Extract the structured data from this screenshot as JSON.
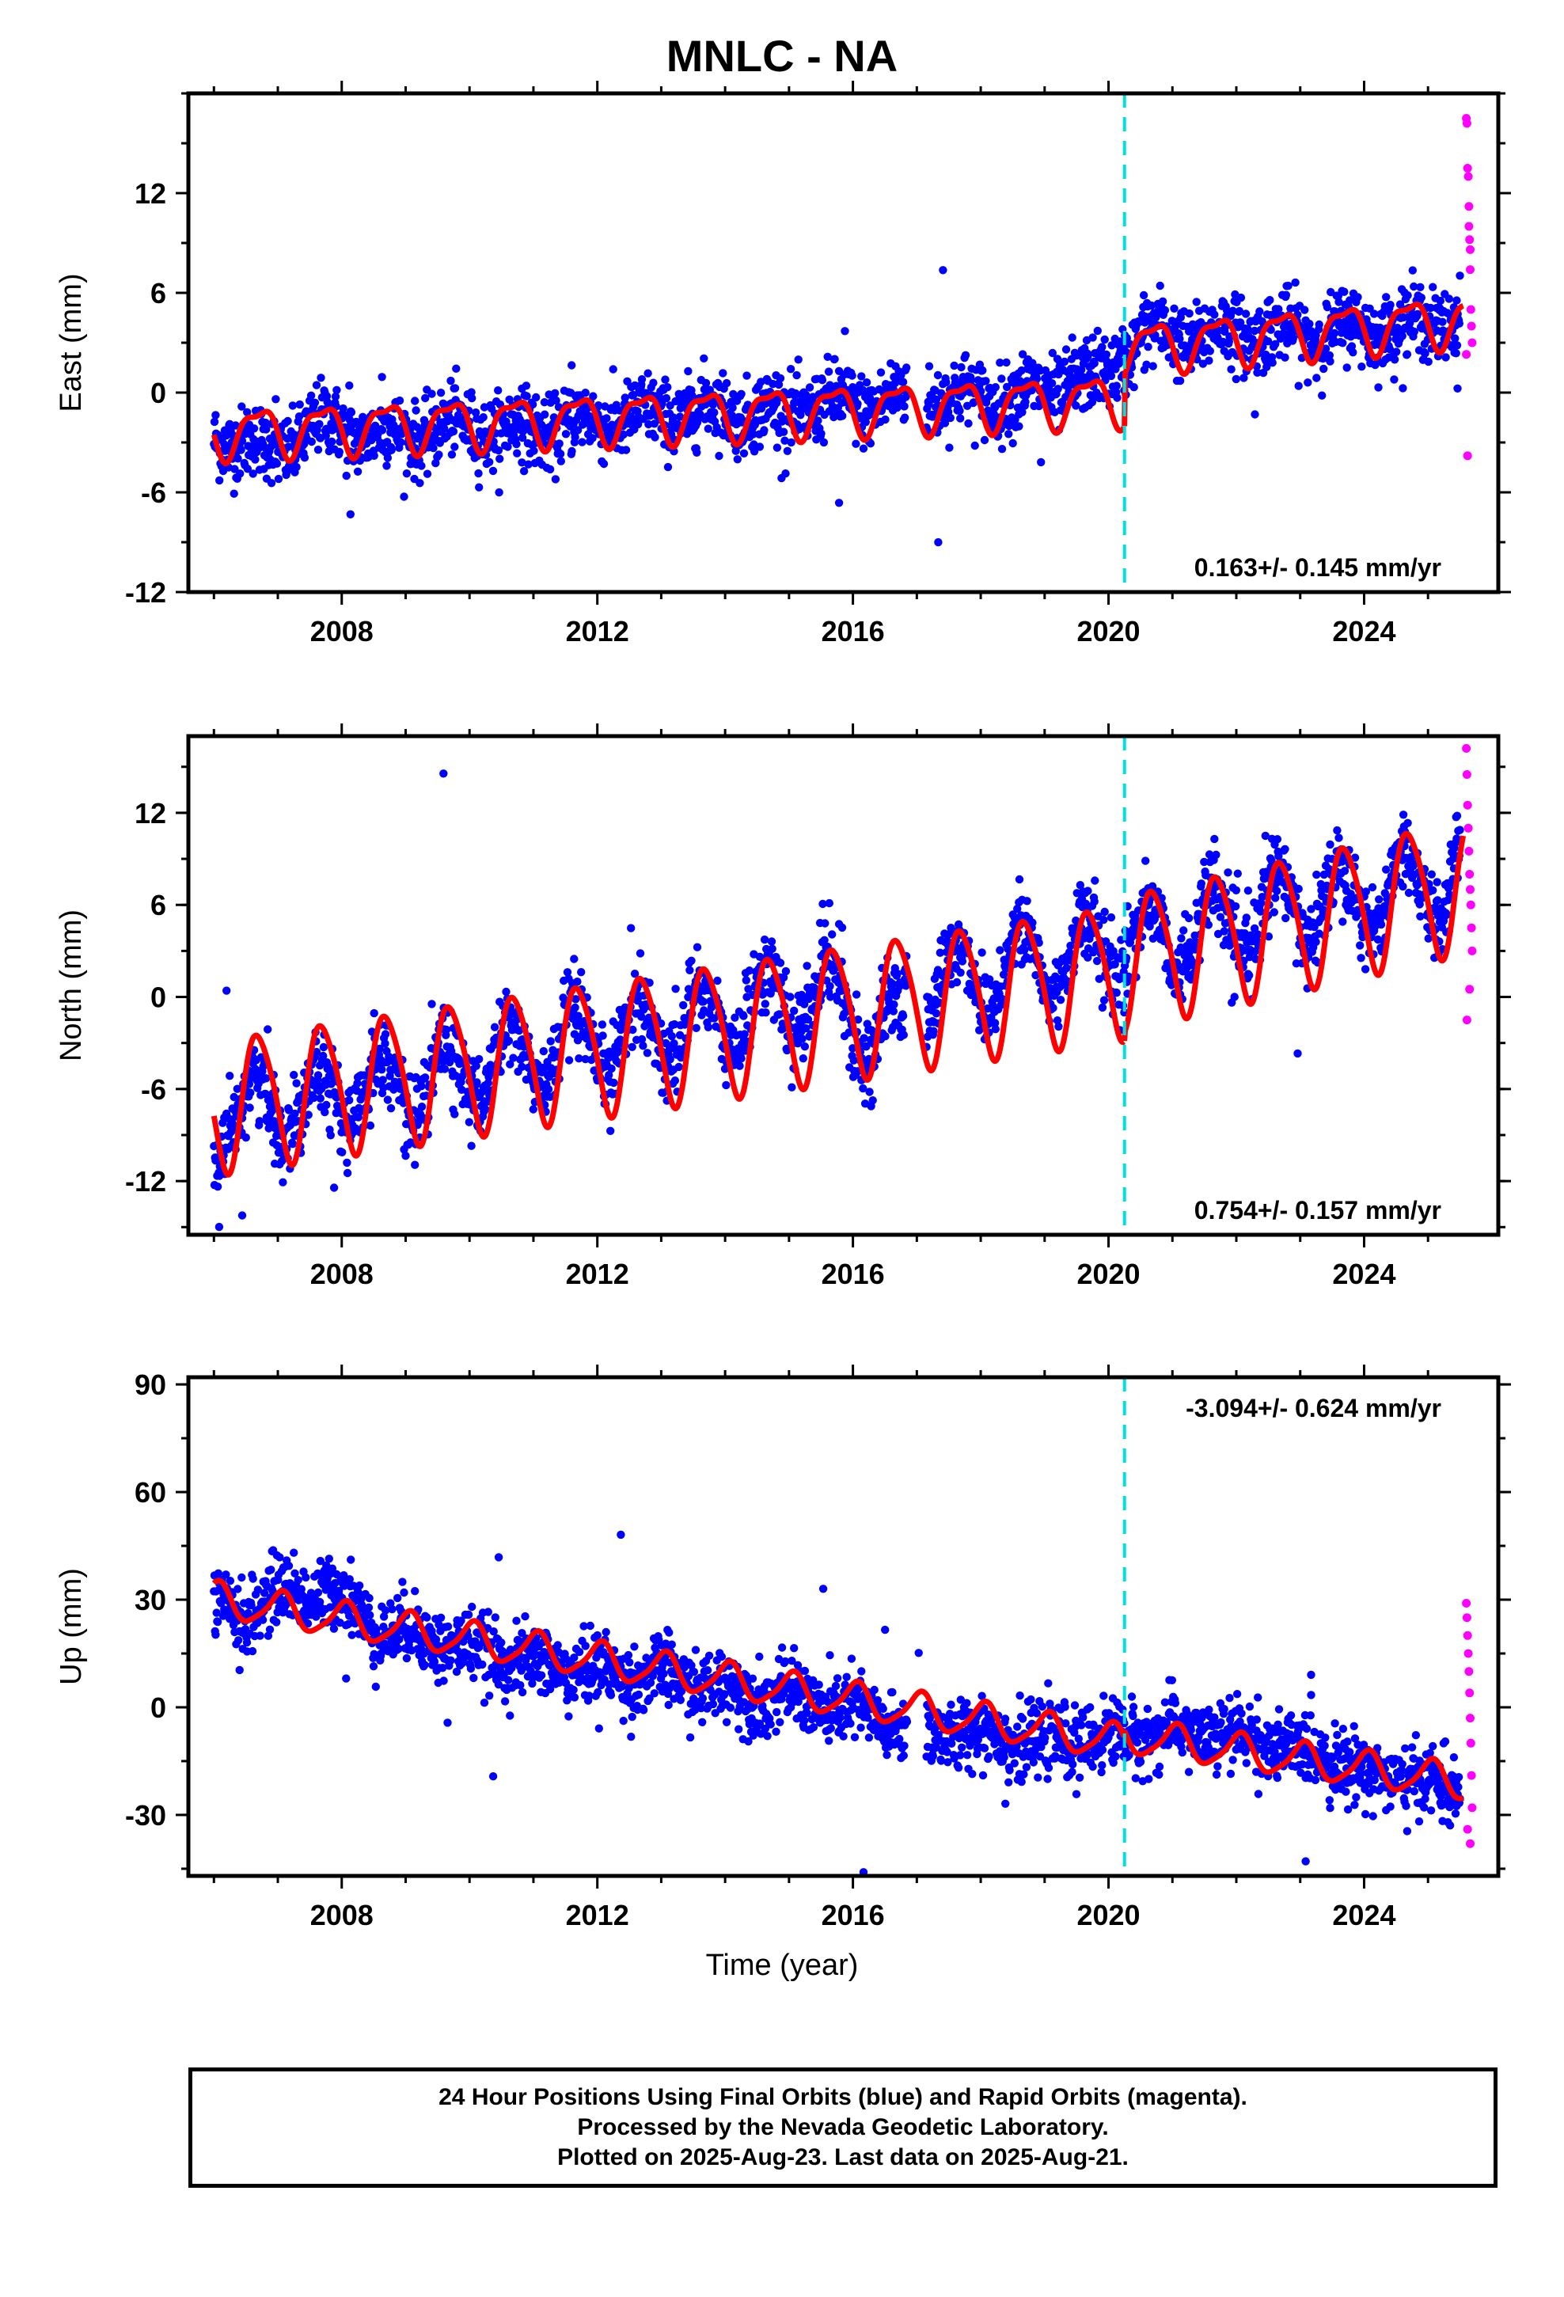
{
  "title": "MNLC - NA",
  "xlabel": "Time (year)",
  "footer": {
    "line1": "24 Hour Positions Using Final Orbits (blue) and Rapid Orbits (magenta).",
    "line2": "Processed by the Nevada Geodetic Laboratory.",
    "line3": "Plotted on 2025-Aug-23. Last data on 2025-Aug-21."
  },
  "colors": {
    "final_orbits": "#0000ff",
    "rapid_orbits": "#ff00ff",
    "model": "#ff0000",
    "event_line": "#00e0e0"
  },
  "chart_data": [
    {
      "type": "scatter",
      "panel": "east",
      "ylabel": "East (mm)",
      "xlim": [
        2005.6,
        2026.1
      ],
      "ylim": [
        -12,
        18
      ],
      "xticks": [
        2008,
        2012,
        2016,
        2020,
        2024
      ],
      "yticks": [
        -12,
        -6,
        0,
        6,
        12
      ],
      "rate_label": "0.163+/- 0.145 mm/yr",
      "event_line_x": 2020.25,
      "model": {
        "x_start": 2006.0,
        "x_end": 2025.55,
        "offset": 0.0,
        "trend": 0.163,
        "trend_ref": 2015.8,
        "steps": [
          {
            "x": 2020.25,
            "dy": 3.1
          }
        ],
        "annual_amp": 1.4,
        "annual_phase": 0.55,
        "semi_amp": 0.5,
        "semi_phase": 0.2,
        "base_at_start": -2.4,
        "base_before_event": -0.4,
        "base_after_event": 2.7,
        "base_at_end": 4.4
      },
      "series": [
        {
          "name": "Final Orbits",
          "x": [
            2006.0,
            2006.5,
            2007.0,
            2007.5,
            2008.0,
            2008.5,
            2009.0,
            2009.5,
            2010.0,
            2010.5,
            2011.0,
            2011.5,
            2012.0,
            2012.5,
            2013.0,
            2013.5,
            2014.0,
            2014.5,
            2015.0,
            2015.5,
            2016.0,
            2016.5,
            2017.0,
            2017.5,
            2018.0,
            2018.5,
            2019.0,
            2019.5,
            2020.0,
            2020.5,
            2021.0,
            2021.5,
            2022.0,
            2022.5,
            2023.0,
            2023.5,
            2024.0,
            2024.5,
            2025.0,
            2025.5
          ],
          "y": [
            -2.5,
            -3.0,
            -3.8,
            -2.0,
            -1.8,
            -3.0,
            -2.2,
            -2.6,
            -1.5,
            -2.8,
            -1.8,
            -2.4,
            -1.2,
            -2.0,
            -0.8,
            -1.6,
            -0.4,
            -1.8,
            -0.6,
            -1.2,
            -0.2,
            -1.0,
            0.4,
            -0.8,
            0.2,
            -0.8,
            0.6,
            0.2,
            1.2,
            3.6,
            3.8,
            2.8,
            4.2,
            3.2,
            4.0,
            3.2,
            4.4,
            3.4,
            4.6,
            4.2
          ],
          "spread": 1.8
        },
        {
          "name": "Rapid Orbits",
          "x": [
            2025.6,
            2025.61,
            2025.62,
            2025.63,
            2025.64,
            2025.65,
            2025.66,
            2025.67,
            2025.68,
            2025.69,
            2025.6,
            2025.62,
            2025.64,
            2025.66
          ],
          "y": [
            16.5,
            16.2,
            13.5,
            13.0,
            10.0,
            9.2,
            8.6,
            5.0,
            4.0,
            3.0,
            2.3,
            -3.8,
            11.2,
            7.4
          ]
        }
      ]
    },
    {
      "type": "scatter",
      "panel": "north",
      "ylabel": "North (mm)",
      "xlim": [
        2005.6,
        2026.1
      ],
      "ylim": [
        -15.5,
        17
      ],
      "xticks": [
        2008,
        2012,
        2016,
        2020,
        2024
      ],
      "yticks": [
        -12,
        -6,
        0,
        6,
        12
      ],
      "rate_label": "0.754+/- 0.157 mm/yr",
      "event_line_x": 2020.25,
      "model": {
        "x_start": 2006.0,
        "x_end": 2025.55,
        "annual_amp": 4.3,
        "annual_phase": 0.55,
        "semi_amp": 0.6,
        "semi_phase": 0.1,
        "base_at_start": -7.0,
        "base_before_event": 1.8,
        "base_after_event": 2.4,
        "base_at_end": 7.4
      },
      "series": [
        {
          "name": "Final Orbits",
          "x": [
            2006.0,
            2006.5,
            2007.0,
            2007.5,
            2008.0,
            2008.5,
            2009.0,
            2009.5,
            2010.0,
            2010.5,
            2011.0,
            2011.5,
            2012.0,
            2012.5,
            2013.0,
            2013.5,
            2014.0,
            2014.5,
            2015.0,
            2015.5,
            2016.0,
            2016.5,
            2017.0,
            2017.5,
            2018.0,
            2018.5,
            2019.0,
            2019.5,
            2020.0,
            2020.5,
            2021.0,
            2021.5,
            2022.0,
            2022.5,
            2023.0,
            2023.5,
            2024.0,
            2024.5,
            2025.0,
            2025.5
          ],
          "y": [
            -11.5,
            -4.0,
            -10.5,
            -3.0,
            -10.0,
            -2.0,
            -9.5,
            -1.5,
            -8.5,
            -0.5,
            -7.5,
            0.5,
            -7.0,
            1.5,
            -6.0,
            2.5,
            -5.5,
            3.5,
            -4.5,
            4.5,
            -4.0,
            -0.5,
            -3.0,
            5.0,
            -2.5,
            6.0,
            -1.5,
            6.5,
            -0.5,
            7.5,
            0.0,
            8.5,
            1.0,
            9.5,
            2.0,
            10.5,
            2.5,
            11.0,
            3.5,
            11.5
          ],
          "spread": 2.2
        },
        {
          "name": "Rapid Orbits",
          "x": [
            2025.6,
            2025.61,
            2025.62,
            2025.63,
            2025.64,
            2025.65,
            2025.66,
            2025.67,
            2025.68,
            2025.69,
            2025.61,
            2025.65
          ],
          "y": [
            16.2,
            14.5,
            12.5,
            11.0,
            9.5,
            8.0,
            7.0,
            6.0,
            4.5,
            3.0,
            -1.5,
            0.5
          ]
        }
      ]
    },
    {
      "type": "scatter",
      "panel": "up",
      "ylabel": "Up (mm)",
      "xlim": [
        2005.6,
        2026.1
      ],
      "ylim": [
        -47,
        92
      ],
      "xticks": [
        2008,
        2012,
        2016,
        2020,
        2024
      ],
      "yticks": [
        -30,
        0,
        30,
        60,
        90
      ],
      "rate_label": "-3.094+/- 0.624 mm/yr",
      "event_line_x": 2020.25,
      "model": {
        "x_start": 2006.0,
        "x_end": 2025.55,
        "annual_amp": 4.8,
        "annual_phase": 0.2,
        "semi_amp": 1.0,
        "semi_phase": 0.0,
        "base_at_start": 30.0,
        "base_before_event": -10.0,
        "base_after_event": -8.0,
        "base_at_end": -21.0
      },
      "series": [
        {
          "name": "Final Orbits",
          "x": [
            2006.0,
            2006.5,
            2007.0,
            2007.5,
            2008.0,
            2008.5,
            2009.0,
            2009.5,
            2010.0,
            2010.5,
            2011.0,
            2011.5,
            2012.0,
            2012.5,
            2013.0,
            2013.5,
            2014.0,
            2014.5,
            2015.0,
            2015.5,
            2016.0,
            2016.5,
            2017.0,
            2017.5,
            2018.0,
            2018.5,
            2019.0,
            2019.5,
            2020.0,
            2020.5,
            2021.0,
            2021.5,
            2022.0,
            2022.5,
            2023.0,
            2023.5,
            2024.0,
            2024.5,
            2025.0,
            2025.5
          ],
          "y": [
            28,
            24,
            34,
            30,
            34,
            20,
            22,
            18,
            16,
            14,
            12,
            11,
            10,
            8,
            10,
            6,
            6,
            2,
            4,
            0,
            0,
            -4,
            -8,
            -6,
            -8,
            -8,
            -12,
            -8,
            -10,
            -6,
            -8,
            -6,
            -10,
            -8,
            -14,
            -12,
            -20,
            -18,
            -22,
            -24
          ],
          "spread": 8.0
        },
        {
          "name": "Rapid Orbits",
          "x": [
            2025.6,
            2025.61,
            2025.62,
            2025.63,
            2025.64,
            2025.65,
            2025.66,
            2025.67,
            2025.68,
            2025.69,
            2025.62,
            2025.66
          ],
          "y": [
            29,
            25,
            20,
            15,
            10,
            4,
            -3,
            -10,
            -19,
            -28,
            -34,
            -38
          ]
        }
      ]
    }
  ],
  "ticks": {
    "x": [
      "2008",
      "2012",
      "2016",
      "2020",
      "2024"
    ],
    "east_y": [
      "12",
      "6",
      "0",
      "-6",
      "-12"
    ],
    "north_y": [
      "12",
      "6",
      "0",
      "-6",
      "-12"
    ],
    "up_y": [
      "90",
      "60",
      "30",
      "0",
      "-30"
    ]
  }
}
